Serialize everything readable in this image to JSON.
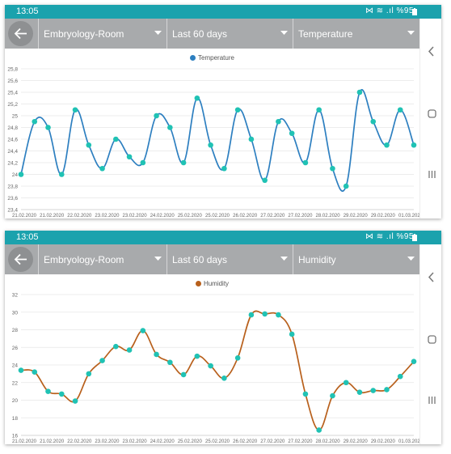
{
  "status_bar": {
    "time": "13:05",
    "indicators": "⋈ ≋ .ıl %95",
    "battery_icon": "battery-icon"
  },
  "app_bar": {
    "back_icon": "arrow-left-icon",
    "room": "Embryology-Room",
    "period": "Last 60 days"
  },
  "nav_bar": {
    "icons": [
      "chevron-left-icon",
      "circle-home-icon",
      "recent-apps-icon"
    ]
  },
  "colors": {
    "status_bar": "#1ba2ad",
    "app_bar": "#a8aaac",
    "temperature_line": "#2d7fc0",
    "humidity_line": "#b8601c",
    "point": "#20c2b4"
  },
  "x_labels": [
    "21.02.2020",
    "21.02.2020",
    "22.02.2020",
    "23.02.2020",
    "23.02.2020",
    "24.02.2020",
    "25.02.2020",
    "25.02.2020",
    "26.02.2020",
    "27.02.2020",
    "27.02.2020",
    "28.02.2020",
    "29.02.2020",
    "29.02.2020",
    "01.03.2020"
  ],
  "chart_data": [
    {
      "type": "line",
      "metric": "Temperature",
      "series": [
        {
          "name": "Temperature"
        }
      ],
      "legend": "top-center",
      "y_ticks": [
        "23,4",
        "23,6",
        "23,8",
        "24",
        "24,2",
        "24,4",
        "24,6",
        "24,8",
        "25",
        "25,2",
        "25,4",
        "25,6",
        "25,8"
      ],
      "ylim": [
        23.4,
        25.8
      ],
      "values": [
        24.0,
        24.9,
        24.8,
        24.0,
        25.1,
        24.5,
        24.1,
        24.6,
        24.3,
        24.2,
        25.0,
        24.8,
        24.2,
        25.3,
        24.5,
        24.1,
        25.1,
        24.6,
        23.9,
        24.9,
        24.7,
        24.2,
        25.1,
        24.1,
        23.8,
        25.4,
        24.9,
        24.5,
        25.1,
        24.5
      ],
      "grid": "horizontal"
    },
    {
      "type": "line",
      "metric": "Humidity",
      "series": [
        {
          "name": "Humidity"
        }
      ],
      "legend": "top-center",
      "y_ticks": [
        "16",
        "18",
        "20",
        "22",
        "24",
        "26",
        "28",
        "30",
        "32"
      ],
      "ylim": [
        16,
        32
      ],
      "values": [
        23.4,
        23.2,
        21.0,
        20.7,
        19.9,
        23.0,
        24.5,
        26.1,
        25.7,
        27.9,
        25.2,
        24.3,
        22.9,
        25.0,
        23.9,
        22.5,
        24.8,
        29.7,
        29.8,
        29.7,
        27.5,
        20.7,
        16.6,
        20.5,
        22.0,
        20.9,
        21.1,
        21.2,
        22.7,
        24.4
      ],
      "grid": "horizontal"
    }
  ]
}
